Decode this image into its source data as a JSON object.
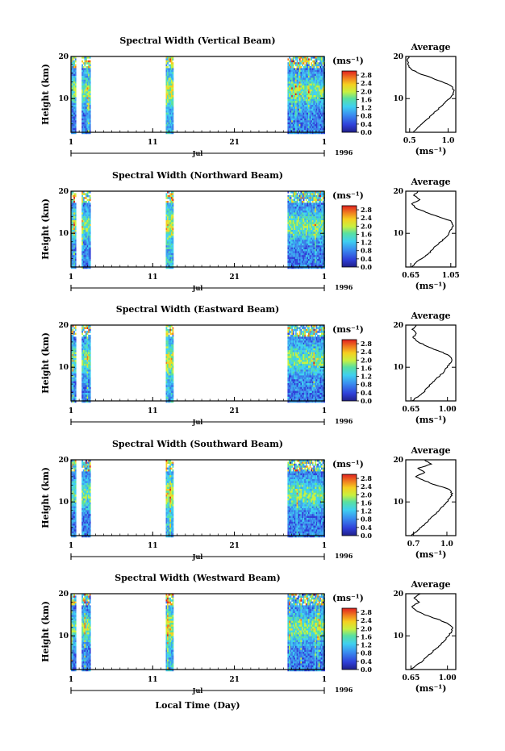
{
  "figure": {
    "xaxis_label": "Local Time (Day)",
    "year": "1996",
    "month": "Jul"
  },
  "chart_data": [
    {
      "type": "heatmap",
      "title": "Spectral Width (Vertical Beam)",
      "ylabel": "Height (km)",
      "unit_label": "(ms⁻¹)",
      "x_ticks": [
        "1",
        "11",
        "21",
        "1"
      ],
      "y_ticks": [
        "10",
        "20"
      ],
      "ylim": [
        2,
        20
      ],
      "colorbar_ticks": [
        "0.0",
        "0.4",
        "0.8",
        "1.2",
        "1.6",
        "2.0",
        "2.4",
        "2.8"
      ],
      "colorbar_range": [
        0.0,
        3.0
      ],
      "data_segments_day": [
        [
          1,
          1.5
        ],
        [
          2.3,
          3.4
        ],
        [
          12.6,
          13.5
        ],
        [
          27.5,
          32
        ]
      ],
      "average_profile": {
        "title": "Average",
        "xlabel": "(ms⁻¹)",
        "x_ticks": [
          "0.5",
          "1.0"
        ],
        "xlim": [
          0.45,
          1.1
        ],
        "y_ticks": [
          "10",
          "20"
        ],
        "ylim": [
          2,
          20
        ],
        "height_km": [
          2,
          3,
          4,
          5,
          6,
          7,
          8,
          9,
          10,
          11,
          12,
          13,
          14,
          15,
          16,
          17,
          18,
          19,
          20
        ],
        "width_ms": [
          0.55,
          0.6,
          0.66,
          0.72,
          0.78,
          0.84,
          0.9,
          0.96,
          1.02,
          1.07,
          1.08,
          1.04,
          0.92,
          0.78,
          0.62,
          0.52,
          0.48,
          0.47,
          0.49
        ]
      }
    },
    {
      "type": "heatmap",
      "title": "Spectral Width (Northward Beam)",
      "ylabel": "Height (km)",
      "unit_label": "(ms⁻¹)",
      "x_ticks": [
        "1",
        "11",
        "21",
        "1"
      ],
      "y_ticks": [
        "10",
        "20"
      ],
      "ylim": [
        2,
        20
      ],
      "colorbar_ticks": [
        "0.0",
        "0.4",
        "0.8",
        "1.2",
        "1.6",
        "2.0",
        "2.4",
        "2.8"
      ],
      "colorbar_range": [
        0.0,
        3.0
      ],
      "data_segments_day": [
        [
          1,
          1.5
        ],
        [
          2.3,
          3.4
        ],
        [
          12.6,
          13.5
        ],
        [
          27.5,
          32
        ]
      ],
      "average_profile": {
        "title": "Average",
        "xlabel": "(ms⁻¹)",
        "x_ticks": [
          "0.65",
          "1.05"
        ],
        "xlim": [
          0.6,
          1.1
        ],
        "y_ticks": [
          "10",
          "20"
        ],
        "ylim": [
          2,
          20
        ],
        "height_km": [
          2,
          3,
          4,
          5,
          6,
          7,
          8,
          9,
          10,
          11,
          12,
          13,
          14,
          15,
          16,
          17,
          18,
          19,
          20
        ],
        "width_ms": [
          0.66,
          0.7,
          0.76,
          0.82,
          0.86,
          0.9,
          0.95,
          1.0,
          1.03,
          1.06,
          1.07,
          1.05,
          0.92,
          0.8,
          0.7,
          0.66,
          0.74,
          0.68,
          0.72
        ]
      }
    },
    {
      "type": "heatmap",
      "title": "Spectral Width (Eastward Beam)",
      "ylabel": "Height (km)",
      "unit_label": "(ms⁻¹)",
      "x_ticks": [
        "1",
        "11",
        "21",
        "1"
      ],
      "y_ticks": [
        "10",
        "20"
      ],
      "ylim": [
        2,
        20
      ],
      "colorbar_ticks": [
        "0.0",
        "0.4",
        "0.8",
        "1.2",
        "1.6",
        "2.0",
        "2.4",
        "2.8"
      ],
      "colorbar_range": [
        0.0,
        3.0
      ],
      "data_segments_day": [
        [
          1,
          1.5
        ],
        [
          2.3,
          3.4
        ],
        [
          12.6,
          13.5
        ],
        [
          27.5,
          32
        ]
      ],
      "average_profile": {
        "title": "Average",
        "xlabel": "(ms⁻¹)",
        "x_ticks": [
          "0.65",
          "1.00"
        ],
        "xlim": [
          0.6,
          1.08
        ],
        "y_ticks": [
          "10",
          "20"
        ],
        "ylim": [
          2,
          20
        ],
        "height_km": [
          2,
          3,
          4,
          5,
          6,
          7,
          8,
          9,
          10,
          11,
          12,
          13,
          14,
          15,
          16,
          17,
          18,
          19,
          20
        ],
        "width_ms": [
          0.66,
          0.72,
          0.77,
          0.8,
          0.84,
          0.88,
          0.93,
          0.97,
          1.0,
          1.03,
          1.04,
          1.0,
          0.9,
          0.8,
          0.72,
          0.67,
          0.7,
          0.66,
          0.7
        ]
      }
    },
    {
      "type": "heatmap",
      "title": "Spectral Width (Southward Beam)",
      "ylabel": "Height (km)",
      "unit_label": "(ms⁻¹)",
      "x_ticks": [
        "1",
        "11",
        "21",
        "1"
      ],
      "y_ticks": [
        "10",
        "20"
      ],
      "ylim": [
        2,
        20
      ],
      "colorbar_ticks": [
        "0.0",
        "0.4",
        "0.8",
        "1.2",
        "1.6",
        "2.0",
        "2.4",
        "2.8"
      ],
      "colorbar_range": [
        0.0,
        3.0
      ],
      "data_segments_day": [
        [
          1,
          1.5
        ],
        [
          2.3,
          3.4
        ],
        [
          12.6,
          13.5
        ],
        [
          27.5,
          32
        ]
      ],
      "average_profile": {
        "title": "Average",
        "xlabel": "(ms⁻¹)",
        "x_ticks": [
          "0.7",
          "1.0"
        ],
        "xlim": [
          0.63,
          1.08
        ],
        "y_ticks": [
          "10",
          "20"
        ],
        "ylim": [
          2,
          20
        ],
        "height_km": [
          2,
          3,
          4,
          5,
          6,
          7,
          8,
          9,
          10,
          11,
          12,
          13,
          14,
          15,
          16,
          17,
          18,
          19,
          20
        ],
        "width_ms": [
          0.68,
          0.73,
          0.77,
          0.81,
          0.85,
          0.89,
          0.93,
          0.97,
          1.0,
          1.03,
          1.05,
          1.02,
          0.9,
          0.8,
          0.72,
          0.8,
          0.74,
          0.86,
          0.8
        ]
      }
    },
    {
      "type": "heatmap",
      "title": "Spectral Width (Westward Beam)",
      "ylabel": "Height (km)",
      "unit_label": "(ms⁻¹)",
      "x_ticks": [
        "1",
        "11",
        "21",
        "1"
      ],
      "y_ticks": [
        "10",
        "20"
      ],
      "ylim": [
        2,
        20
      ],
      "colorbar_ticks": [
        "0.0",
        "0.4",
        "0.8",
        "1.2",
        "1.6",
        "2.0",
        "2.4",
        "2.8"
      ],
      "colorbar_range": [
        0.0,
        3.0
      ],
      "data_segments_day": [
        [
          1,
          1.5
        ],
        [
          2.3,
          3.4
        ],
        [
          12.6,
          13.5
        ],
        [
          27.5,
          32
        ]
      ],
      "average_profile": {
        "title": "Average",
        "xlabel": "(ms⁻¹)",
        "x_ticks": [
          "0.65",
          "1.00"
        ],
        "xlim": [
          0.6,
          1.08
        ],
        "y_ticks": [
          "10",
          "20"
        ],
        "ylim": [
          2,
          20
        ],
        "height_km": [
          2,
          3,
          4,
          5,
          6,
          7,
          8,
          9,
          10,
          11,
          12,
          13,
          14,
          15,
          16,
          17,
          18,
          19,
          20
        ],
        "width_ms": [
          0.64,
          0.7,
          0.76,
          0.8,
          0.85,
          0.89,
          0.94,
          0.98,
          1.01,
          1.04,
          1.05,
          1.0,
          0.9,
          0.78,
          0.7,
          0.66,
          0.73,
          0.68,
          0.74
        ]
      }
    }
  ]
}
